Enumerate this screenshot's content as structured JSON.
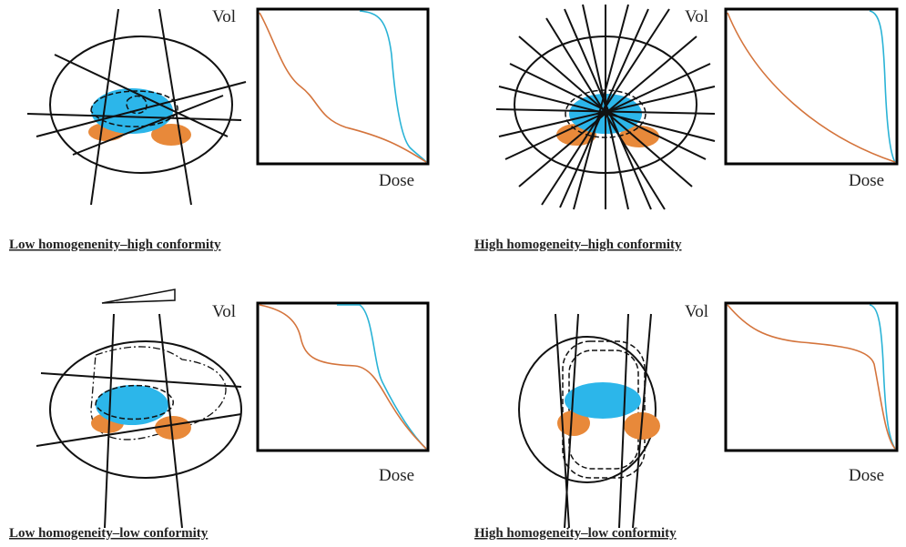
{
  "panels": [
    {
      "y_label": "Vol",
      "x_label": "Dose",
      "caption": "Low homogenenity–high conformity"
    },
    {
      "y_label": "Vol",
      "x_label": "Dose",
      "caption": "High homogeneity–high conformity"
    },
    {
      "y_label": "Vol",
      "x_label": "Dose",
      "caption": "Low homogeneity–low conformity"
    },
    {
      "y_label": "Vol",
      "x_label": "Dose",
      "caption": "High homogeneity–low conformity"
    }
  ]
}
